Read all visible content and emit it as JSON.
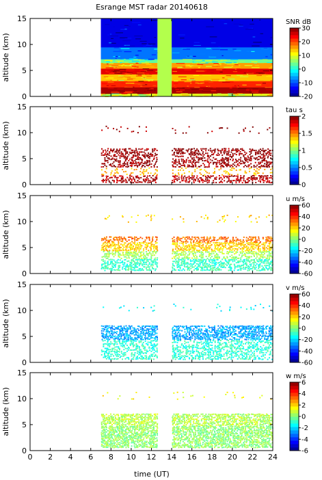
{
  "figure": {
    "title": "Esrange MST radar 20140618",
    "xlabel": "time (UT)",
    "xticks": [
      "0",
      "2",
      "4",
      "6",
      "8",
      "10",
      "12",
      "14",
      "16",
      "18",
      "20",
      "22",
      "24"
    ]
  },
  "chart_data": [
    {
      "type": "heatmap",
      "ylabel": "altitude (km)",
      "xlim": [
        0,
        24
      ],
      "ylim": [
        0,
        15
      ],
      "yticks": [
        "0",
        "5",
        "10",
        "15"
      ],
      "colorbar": {
        "label": "SNR dB",
        "ticks": [
          "30",
          "20",
          "10",
          "0",
          "-10",
          "-20"
        ],
        "range": [
          -20,
          30
        ],
        "scale": "jet"
      },
      "data_extent_ut": [
        [
          7.0,
          12.6
        ],
        [
          14.0,
          24.0
        ]
      ],
      "gap_fill_ut": [
        12.6,
        14.0
      ],
      "layers": [
        {
          "alt": [
            0.0,
            0.6
          ],
          "value": 10
        },
        {
          "alt": [
            0.6,
            1.8
          ],
          "value": 28
        },
        {
          "alt": [
            1.8,
            3.0
          ],
          "value": 22
        },
        {
          "alt": [
            3.0,
            4.3
          ],
          "value": 14
        },
        {
          "alt": [
            4.3,
            5.4
          ],
          "value": 25
        },
        {
          "alt": [
            5.4,
            6.5
          ],
          "value": 16
        },
        {
          "alt": [
            6.5,
            7.2
          ],
          "value": 4
        },
        {
          "alt": [
            7.2,
            9.5
          ],
          "value": -8
        },
        {
          "alt": [
            9.5,
            15.0
          ],
          "value": -15
        }
      ]
    },
    {
      "type": "heatmap",
      "ylabel": "altitude (km)",
      "xlim": [
        0,
        24
      ],
      "ylim": [
        0,
        15
      ],
      "yticks": [
        "0",
        "5",
        "10",
        "15"
      ],
      "colorbar": {
        "label": "tau s",
        "ticks": [
          "2",
          "1.5",
          "1",
          "0.5",
          "0"
        ],
        "range": [
          0,
          2
        ],
        "scale": "jet"
      },
      "data_extent_ut": [
        [
          7.0,
          12.6
        ],
        [
          14.0,
          24.0
        ]
      ],
      "sparse": true,
      "layers": [
        {
          "alt": [
            0.5,
            2.0
          ],
          "value": 1.9,
          "density": 0.55
        },
        {
          "alt": [
            2.0,
            3.5
          ],
          "value": 1.4,
          "density": 0.25
        },
        {
          "alt": [
            3.5,
            7.2
          ],
          "value": 1.95,
          "density": 0.55
        },
        {
          "alt": [
            10.0,
            11.5
          ],
          "value": 1.95,
          "density": 0.06
        }
      ]
    },
    {
      "type": "heatmap",
      "ylabel": "altitude (km)",
      "xlim": [
        0,
        24
      ],
      "ylim": [
        0,
        15
      ],
      "yticks": [
        "0",
        "5",
        "10",
        "15"
      ],
      "colorbar": {
        "label": "u m/s",
        "ticks": [
          "60",
          "40",
          "20",
          "0",
          "-20",
          "-40",
          "-60"
        ],
        "range": [
          -60,
          60
        ],
        "scale": "jet"
      },
      "data_extent_ut": [
        [
          7.0,
          12.6
        ],
        [
          14.0,
          24.0
        ]
      ],
      "sparse": true,
      "layers": [
        {
          "alt": [
            0.7,
            3.0
          ],
          "value": -8,
          "density": 0.7
        },
        {
          "alt": [
            3.0,
            4.5
          ],
          "value": 5,
          "density": 0.6
        },
        {
          "alt": [
            4.5,
            6.2
          ],
          "value": 20,
          "density": 0.7
        },
        {
          "alt": [
            6.2,
            7.3
          ],
          "value": 32,
          "density": 0.6
        },
        {
          "alt": [
            10.0,
            11.5
          ],
          "value": 20,
          "density": 0.08
        }
      ]
    },
    {
      "type": "heatmap",
      "ylabel": "altitude (km)",
      "xlim": [
        0,
        24
      ],
      "ylim": [
        0,
        15
      ],
      "yticks": [
        "0",
        "5",
        "10",
        "15"
      ],
      "colorbar": {
        "label": "v m/s",
        "ticks": [
          "60",
          "40",
          "20",
          "0",
          "-20",
          "-40",
          "-60"
        ],
        "range": [
          -60,
          60
        ],
        "scale": "jet"
      },
      "data_extent_ut": [
        [
          7.0,
          12.6
        ],
        [
          14.0,
          24.0
        ]
      ],
      "sparse": true,
      "layers": [
        {
          "alt": [
            0.7,
            4.5
          ],
          "value": -10,
          "density": 0.6
        },
        {
          "alt": [
            4.5,
            7.3
          ],
          "value": -25,
          "density": 0.75
        },
        {
          "alt": [
            10.0,
            11.5
          ],
          "value": -15,
          "density": 0.06
        }
      ]
    },
    {
      "type": "heatmap",
      "ylabel": "altitude (km)",
      "xlim": [
        0,
        24
      ],
      "ylim": [
        0,
        15
      ],
      "yticks": [
        "0",
        "5",
        "10",
        "15"
      ],
      "colorbar": {
        "label": "w m/s",
        "ticks": [
          "6",
          "4",
          "2",
          "0",
          "-2",
          "-4",
          "-6"
        ],
        "range": [
          -6,
          6
        ],
        "scale": "jet"
      },
      "data_extent_ut": [
        [
          7.0,
          12.6
        ],
        [
          14.0,
          24.0
        ]
      ],
      "sparse": true,
      "layers": [
        {
          "alt": [
            0.7,
            5.0
          ],
          "value": 0.2,
          "density": 0.8
        },
        {
          "alt": [
            5.0,
            7.3
          ],
          "value": 0.6,
          "density": 0.8
        },
        {
          "alt": [
            10.0,
            11.5
          ],
          "value": 1.5,
          "density": 0.06
        }
      ]
    }
  ]
}
